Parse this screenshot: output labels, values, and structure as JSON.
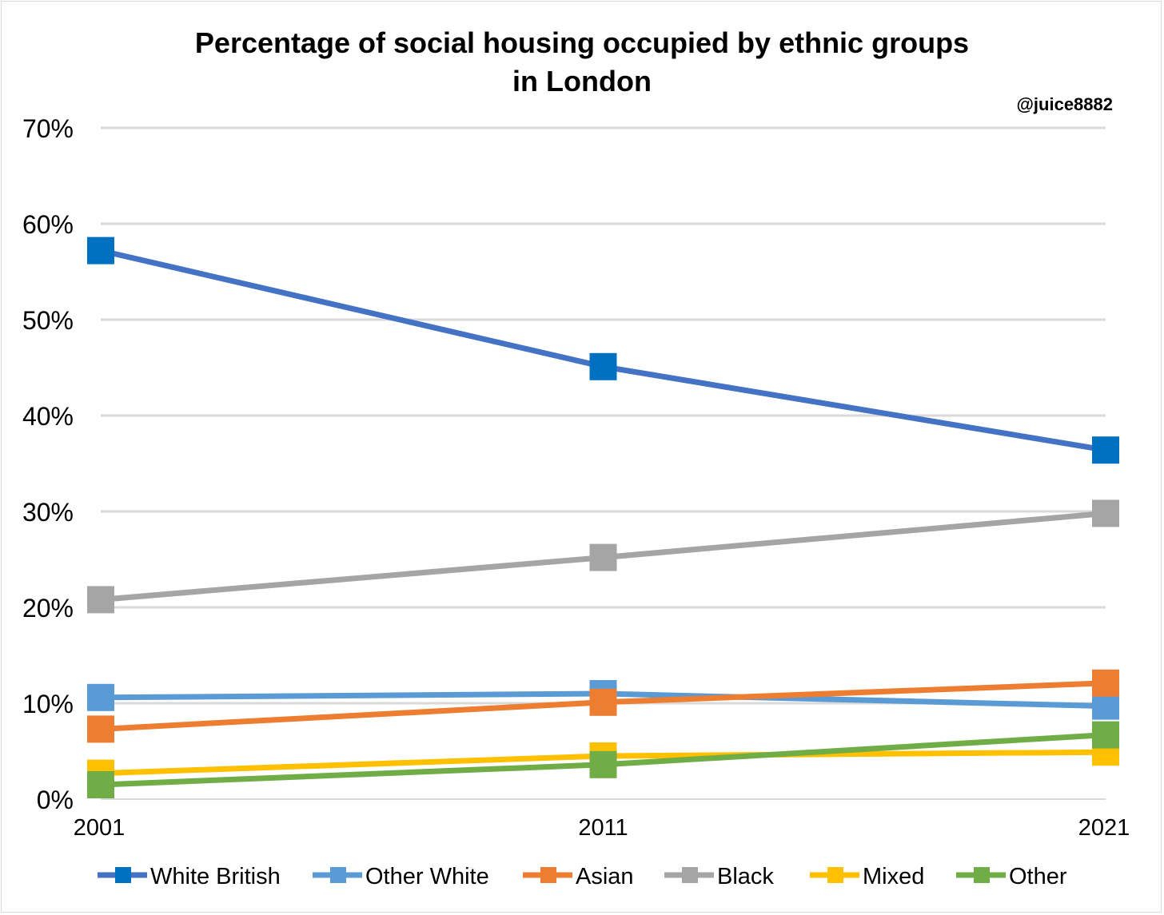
{
  "chart_data": {
    "type": "line",
    "title_line1": "Percentage of social housing occupied by ethnic groups",
    "title_line2": "in London",
    "watermark": "@juice8882",
    "xlabel": "",
    "ylabel": "",
    "categories": [
      "2001",
      "2011",
      "2021"
    ],
    "ylim": [
      0,
      70
    ],
    "yticks": [
      0,
      10,
      20,
      30,
      40,
      50,
      60,
      70
    ],
    "ytick_labels": [
      "0%",
      "10%",
      "20%",
      "30%",
      "40%",
      "50%",
      "60%",
      "70%"
    ],
    "grid": true,
    "legend_position": "bottom",
    "marker": "square",
    "series": [
      {
        "name": "White British",
        "values": [
          57.2,
          45.1,
          36.4
        ],
        "line_color": "#4472C4",
        "marker_color": "#0070C0"
      },
      {
        "name": "Other White",
        "values": [
          10.6,
          11.0,
          9.7
        ],
        "line_color": "#5B9BD5",
        "marker_color": "#5B9BD5"
      },
      {
        "name": "Asian",
        "values": [
          7.3,
          10.1,
          12.1
        ],
        "line_color": "#ED7D31",
        "marker_color": "#ED7D31"
      },
      {
        "name": "Black",
        "values": [
          20.8,
          25.2,
          29.8
        ],
        "line_color": "#A5A5A5",
        "marker_color": "#A5A5A5"
      },
      {
        "name": "Mixed",
        "values": [
          2.7,
          4.5,
          4.9
        ],
        "line_color": "#FFC000",
        "marker_color": "#FFC000"
      },
      {
        "name": "Other",
        "values": [
          1.5,
          3.6,
          6.7
        ],
        "line_color": "#70AD47",
        "marker_color": "#70AD47"
      }
    ]
  }
}
